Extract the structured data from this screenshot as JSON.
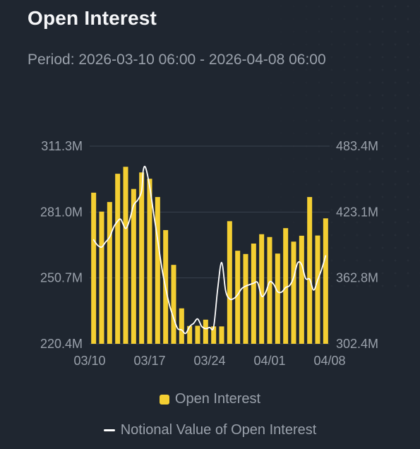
{
  "header": {
    "title": "Open Interest",
    "period": "Period: 2026-03-10 06:00 - 2026-04-08 06:00"
  },
  "colors": {
    "bar": "#f4cf32",
    "line": "#ffffff",
    "grid": "#3a424e",
    "axis_text": "#9aa1ab"
  },
  "chart_data": {
    "type": "bar",
    "x_tick_labels": [
      "03/10",
      "03/17",
      "03/24",
      "04/01",
      "04/08"
    ],
    "y_left_ticks": [
      "220.4M",
      "250.7M",
      "281.0M",
      "311.3M"
    ],
    "y_right_ticks": [
      "302.4M",
      "362.8M",
      "423.1M",
      "483.4M"
    ],
    "ylim_left": [
      220.4,
      311.3
    ],
    "ylim_right": [
      302.4,
      483.4
    ],
    "legend": [
      "Open Interest",
      "Notional Value of Open Interest"
    ],
    "series": [
      {
        "name": "Open Interest",
        "type": "bar",
        "axis": "left",
        "values": [
          289.9,
          281.2,
          285.6,
          298.6,
          301.8,
          291.6,
          299.2,
          296.3,
          287.9,
          272.7,
          256.7,
          236.7,
          228.6,
          228.7,
          231.5,
          228.4,
          228.4,
          276.8,
          263.2,
          261.7,
          266.5,
          270.8,
          269.5,
          261.9,
          273.6,
          267.4,
          270.1,
          287.9,
          270.2,
          278.1
        ]
      },
      {
        "name": "Notional Value of Open Interest",
        "type": "line",
        "axis": "right",
        "x": [
          0,
          0.5,
          1,
          1.5,
          2,
          2.5,
          3,
          3.4,
          4,
          4.5,
          5,
          5.5,
          6,
          6.2,
          6.5,
          7,
          7.5,
          8,
          8.5,
          9,
          9.5,
          10,
          10.5,
          11,
          11.5,
          12,
          12.5,
          13,
          13.5,
          14,
          14.5,
          15,
          15.5,
          16,
          16.5,
          17,
          17.5,
          18,
          18.5,
          19,
          19.5,
          20,
          20.5,
          21,
          21.5,
          22,
          22.5,
          23,
          23.5,
          24,
          24.5,
          25,
          25.5,
          26,
          26.5,
          27,
          27.5,
          28,
          28.5,
          29
        ],
        "values": [
          397.6,
          392.6,
          391.0,
          395.6,
          400.1,
          409.1,
          414.7,
          416.3,
          408.0,
          416.0,
          429.4,
          434.0,
          442.4,
          461.2,
          463.6,
          446.6,
          421.7,
          397.7,
          373.0,
          353.4,
          337.3,
          325.9,
          316.4,
          315.1,
          311.9,
          318.2,
          321.2,
          325.2,
          318.4,
          316.3,
          317.4,
          317.8,
          352.3,
          376.9,
          350.9,
          343.5,
          343.8,
          347.4,
          352.9,
          355.2,
          356.6,
          357.9,
          358.4,
          346.1,
          349.4,
          359.1,
          357.0,
          350.1,
          349.8,
          353.9,
          355.8,
          363.1,
          376.4,
          375.0,
          362.2,
          361.6,
          351.6,
          360.8,
          370.6,
          383.0
        ]
      }
    ]
  }
}
